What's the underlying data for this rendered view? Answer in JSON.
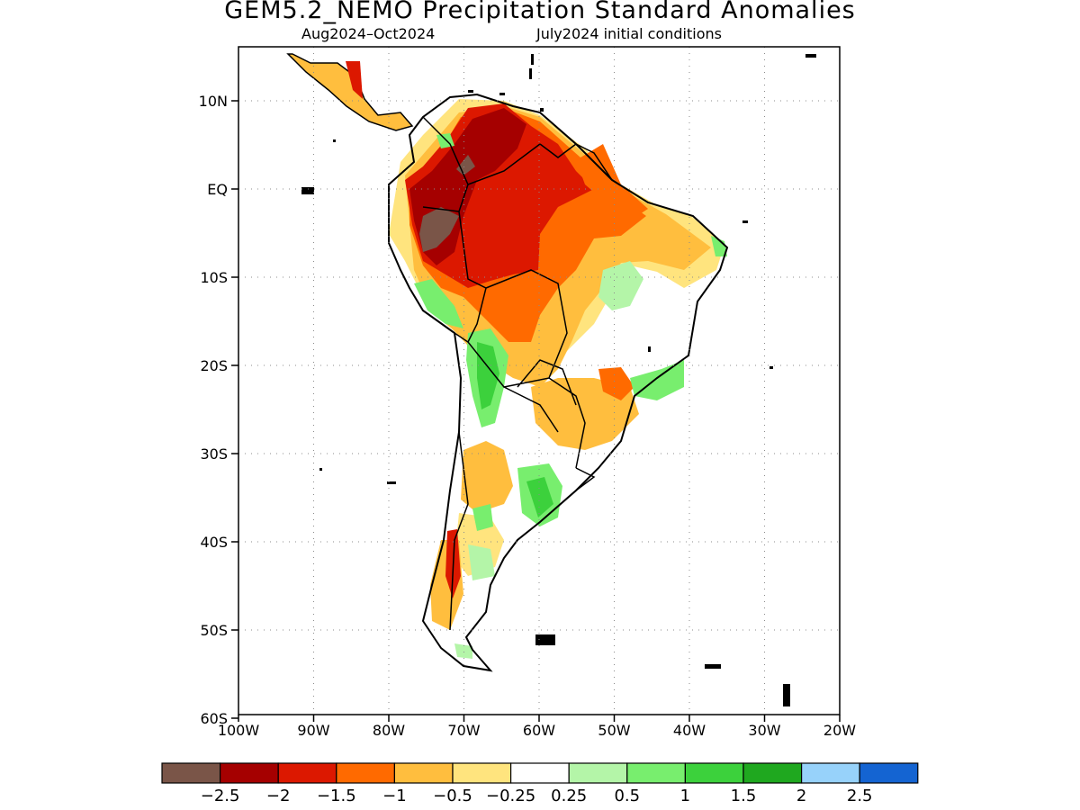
{
  "title": "GEM5.2_NEMO Precipitation Standard Anomalies",
  "subtitle_left": "Aug2024–Oct2024",
  "subtitle_right": "July2024 initial conditions",
  "lat_ticks": [
    "10N",
    "EQ",
    "10S",
    "20S",
    "30S",
    "40S",
    "50S",
    "60S"
  ],
  "lon_ticks": [
    "100W",
    "90W",
    "80W",
    "70W",
    "60W",
    "50W",
    "40W",
    "30W",
    "20W"
  ],
  "colorbar": {
    "colors": [
      "#7a5548",
      "#a50000",
      "#dc1800",
      "#ff6a00",
      "#ffbe3e",
      "#ffe47e",
      "#ffffff",
      "#b4f5a8",
      "#78ee6e",
      "#3cd13c",
      "#1fa81f",
      "#97d2fa",
      "#1464d2"
    ],
    "labels": [
      "−2.5",
      "−2",
      "−1.5",
      "−1",
      "−0.5",
      "−0.25",
      "0.25",
      "0.5",
      "1",
      "1.5",
      "2",
      "2.5"
    ]
  },
  "map_extent": {
    "lon": [
      -100,
      -20
    ],
    "lat": [
      -60,
      15
    ]
  },
  "grid": "dotted"
}
